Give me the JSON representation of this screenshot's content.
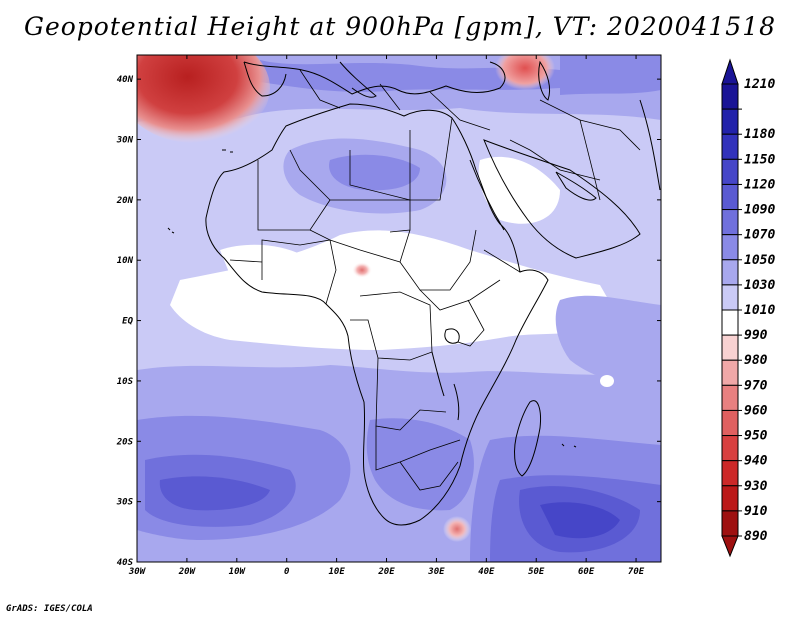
{
  "title": "Geopotential Height at 900hPa [gpm], VT: 2020041518",
  "footer": "GrADS: IGES/COLA",
  "map": {
    "lon_labels": [
      "30W",
      "20W",
      "10W",
      "0",
      "10E",
      "20E",
      "30E",
      "40E",
      "50E",
      "60E",
      "70E"
    ],
    "lat_labels": [
      "40N",
      "30N",
      "20N",
      "10N",
      "EQ",
      "10S",
      "20S",
      "30S",
      "40S"
    ],
    "lon_range": [
      -30,
      75
    ],
    "lat_range": [
      -40,
      44
    ]
  },
  "colorbar": {
    "levels": [
      "1210",
      "1180",
      "1150",
      "1120",
      "1090",
      "1070",
      "1050",
      "1030",
      "1010",
      "990",
      "980",
      "970",
      "960",
      "950",
      "940",
      "930",
      "910",
      "890"
    ],
    "colors": [
      "#1a1496",
      "#2222aa",
      "#3232bb",
      "#4646c8",
      "#5a5ad2",
      "#7070dc",
      "#8a8ae6",
      "#a8a8ee",
      "#cacaf6",
      "#ffffff",
      "#f8d2d2",
      "#f0a8a8",
      "#e88080",
      "#e06060",
      "#d84040",
      "#cc2828",
      "#bb1818",
      "#9e1010"
    ]
  }
}
